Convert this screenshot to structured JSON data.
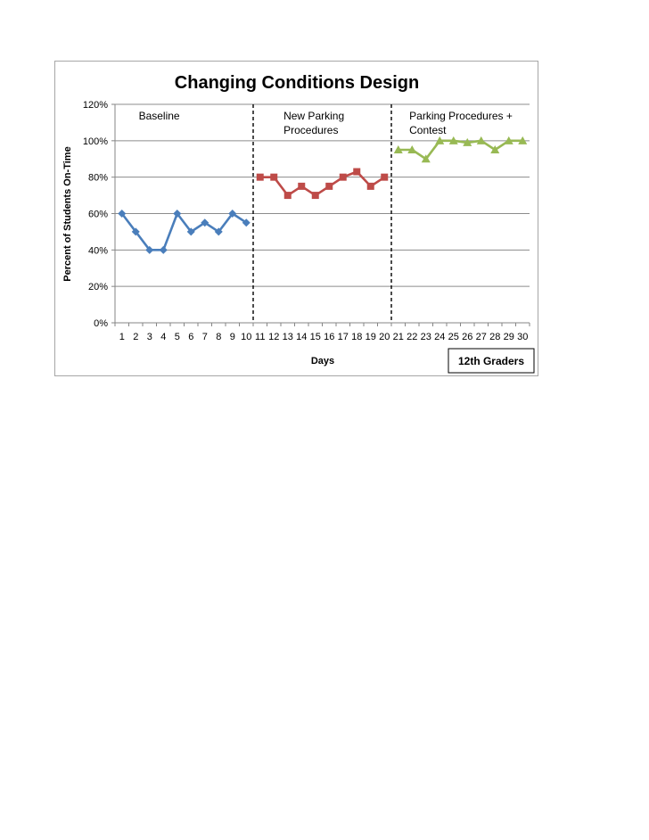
{
  "chart_data": {
    "type": "line",
    "title": "Changing Conditions Design",
    "xlabel": "Days",
    "ylabel": "Percent of Students On-Time",
    "ylim": [
      0,
      120
    ],
    "yticks": [
      "0%",
      "20%",
      "40%",
      "60%",
      "80%",
      "100%",
      "120%"
    ],
    "ytick_values": [
      0,
      20,
      40,
      60,
      80,
      100,
      120
    ],
    "x": [
      1,
      2,
      3,
      4,
      5,
      6,
      7,
      8,
      9,
      10,
      11,
      12,
      13,
      14,
      15,
      16,
      17,
      18,
      19,
      20,
      21,
      22,
      23,
      24,
      25,
      26,
      27,
      28,
      29,
      30
    ],
    "grid": true,
    "phases": [
      {
        "lines": [
          "Baseline"
        ],
        "start": 1,
        "end": 10
      },
      {
        "lines": [
          "New Parking",
          "Procedures"
        ],
        "start": 11,
        "end": 20
      },
      {
        "lines": [
          "Parking Procedures +",
          "Contest"
        ],
        "start": 21,
        "end": 30
      }
    ],
    "phase_dividers": [
      10.5,
      20.5
    ],
    "annotation": "12th Graders",
    "series": [
      {
        "x": [
          1,
          2,
          3,
          4,
          5,
          6,
          7,
          8,
          9,
          10
        ],
        "values": [
          60,
          50,
          40,
          40,
          60,
          50,
          55,
          50,
          60,
          55
        ],
        "color": "#4a7ebb",
        "marker": "diamond"
      },
      {
        "x": [
          11,
          12,
          13,
          14,
          15,
          16,
          17,
          18,
          19,
          20
        ],
        "values": [
          80,
          80,
          70,
          75,
          70,
          75,
          80,
          83,
          75,
          80
        ],
        "color": "#be4b48",
        "marker": "square"
      },
      {
        "x": [
          21,
          22,
          23,
          24,
          25,
          26,
          27,
          28,
          29,
          30
        ],
        "values": [
          95,
          95,
          90,
          100,
          100,
          99,
          100,
          95,
          100,
          100
        ],
        "color": "#98b954",
        "marker": "triangle"
      }
    ]
  }
}
